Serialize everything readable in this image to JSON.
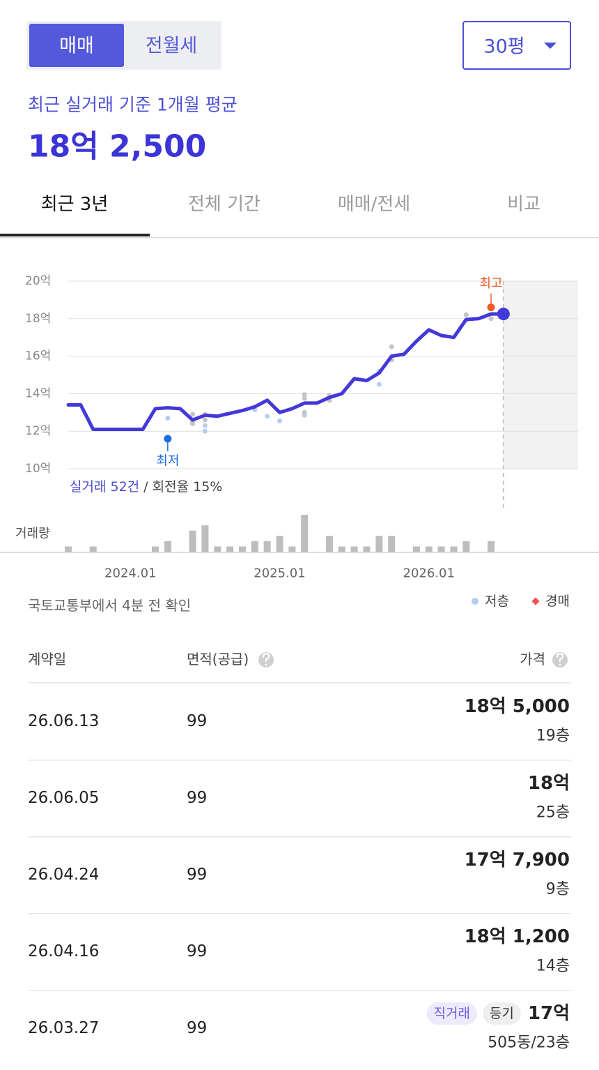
{
  "header": {
    "toggle": [
      {
        "label": "매매",
        "active": true
      },
      {
        "label": "전월세",
        "active": false
      }
    ],
    "size_select": "30평",
    "subtitle": "최근 실거래 기준 1개월 평균",
    "price": "18억 2,500"
  },
  "tabs": [
    {
      "label": "최근 3년",
      "active": true
    },
    {
      "label": "전체 기간",
      "active": false
    },
    {
      "label": "매매/전세",
      "active": false
    },
    {
      "label": "비교",
      "active": false
    }
  ],
  "chart_data": {
    "type": "line",
    "x": [
      "2023.08",
      "2023.09",
      "2023.10",
      "2023.11",
      "2023.12",
      "2024.01",
      "2024.02",
      "2024.03",
      "2024.04",
      "2024.05",
      "2024.06",
      "2024.07",
      "2024.08",
      "2024.09",
      "2024.10",
      "2024.11",
      "2024.12",
      "2025.01",
      "2025.02",
      "2025.03",
      "2025.04",
      "2025.05",
      "2025.06",
      "2025.07",
      "2025.08",
      "2025.09",
      "2025.10",
      "2025.11",
      "2025.12",
      "2026.01",
      "2026.02",
      "2026.03",
      "2026.04",
      "2026.05",
      "2026.06",
      "2026.07"
    ],
    "xlim": [
      "2023.08",
      "2027.01"
    ],
    "xticks": [
      "2024.01",
      "2025.01",
      "2026.01"
    ],
    "ylim": [
      10,
      20
    ],
    "yticks": [
      {
        "value": 10,
        "label": "10억"
      },
      {
        "value": 12,
        "label": "12억"
      },
      {
        "value": 14,
        "label": "14억"
      },
      {
        "value": 16,
        "label": "16억"
      },
      {
        "value": 18,
        "label": "18억"
      },
      {
        "value": 20,
        "label": "20억"
      }
    ],
    "grid": true,
    "series": [
      {
        "color": "#4338d8",
        "values": [
          13.4,
          13.4,
          12.1,
          12.1,
          12.1,
          12.1,
          12.1,
          13.2,
          13.25,
          13.2,
          12.6,
          12.85,
          12.8,
          12.95,
          13.1,
          13.3,
          13.65,
          13.0,
          13.2,
          13.5,
          13.5,
          13.8,
          14.0,
          14.8,
          14.7,
          15.1,
          16.0,
          16.1,
          16.8,
          17.4,
          17.1,
          17.0,
          17.95,
          18.0,
          18.25,
          18.25
        ]
      }
    ],
    "scatter": [
      {
        "color": "#b3cdf2",
        "x": [
          "2024.04",
          "2024.07",
          "2024.07",
          "2024.11",
          "2024.12",
          "2025.01",
          "2025.03",
          "2025.09",
          "2025.09"
        ],
        "values": [
          12.7,
          12.0,
          12.3,
          13.15,
          12.8,
          12.55,
          12.85,
          14.5,
          15.2
        ]
      },
      {
        "color": "#c4c4c4",
        "x": [
          "2024.06",
          "2024.06",
          "2024.06",
          "2024.07",
          "2024.07",
          "2025.03",
          "2025.03",
          "2025.03",
          "2025.05",
          "2025.05",
          "2025.10",
          "2025.10",
          "2026.04",
          "2026.06"
        ],
        "values": [
          12.4,
          12.5,
          12.9,
          12.6,
          12.9,
          13.0,
          13.75,
          13.95,
          13.65,
          13.9,
          15.8,
          16.5,
          18.2,
          18.0
        ]
      }
    ],
    "volume": {
      "label": "거래량",
      "color": "#bdbdbd",
      "values": [
        1,
        0,
        1,
        0,
        0,
        0,
        0,
        1,
        2,
        0,
        4,
        5,
        1,
        1,
        1,
        2,
        2,
        3,
        1,
        7,
        0,
        3,
        1,
        1,
        1,
        3,
        3,
        0,
        1,
        1,
        1,
        1,
        2,
        0,
        2,
        0
      ]
    },
    "annotations": [
      {
        "text": "최고",
        "x": "2026.06",
        "y": 18.6,
        "color": "#f05a28",
        "position": "above"
      },
      {
        "text": "최저",
        "x": "2024.04",
        "y": 11.6,
        "color": "#1a6fe0",
        "position": "below"
      }
    ],
    "summary": {
      "count": "실거래 52건",
      "turnover": " / 회전율 15%"
    },
    "source": "국토교통부에서 4분 전 확인",
    "legend": [
      {
        "label": "저층",
        "color": "#b3cdf2",
        "shape": "circle"
      },
      {
        "label": "경매",
        "color": "#ef5350",
        "shape": "diamond"
      }
    ]
  },
  "table": {
    "columns": [
      "계약일",
      "면적(공급)",
      "가격"
    ],
    "rows": [
      {
        "date": "26.06.13",
        "area": "99",
        "price": "18억 5,000",
        "floor": "19층",
        "tags": []
      },
      {
        "date": "26.06.05",
        "area": "99",
        "price": "18억",
        "floor": "25층",
        "tags": []
      },
      {
        "date": "26.04.24",
        "area": "99",
        "price": "17억 7,900",
        "floor": "9층",
        "tags": []
      },
      {
        "date": "26.04.16",
        "area": "99",
        "price": "18억 1,200",
        "floor": "14층",
        "tags": []
      },
      {
        "date": "26.03.27",
        "area": "99",
        "price": "17억",
        "floor": "505동/23층",
        "tags": [
          "직거래",
          "등기"
        ]
      }
    ]
  }
}
